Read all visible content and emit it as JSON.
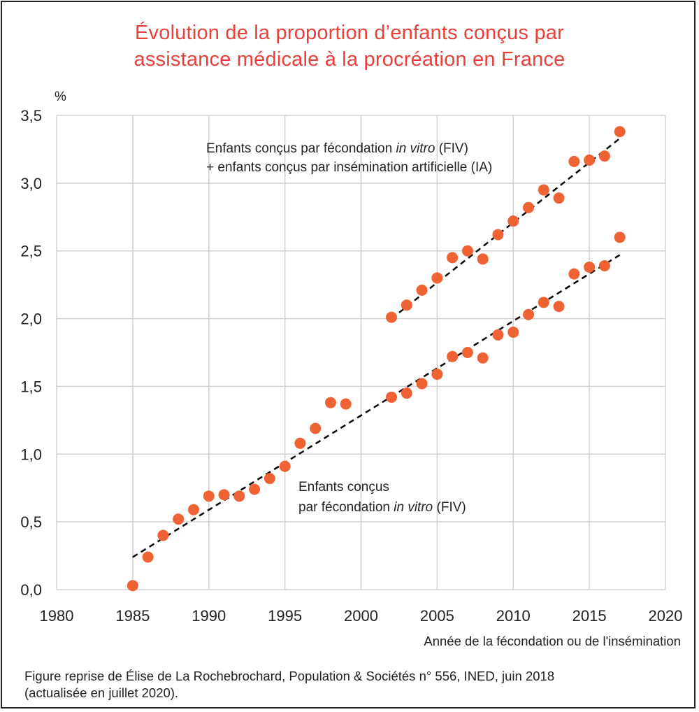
{
  "chart_data": {
    "type": "scatter",
    "title_lines": [
      "Évolution de la proportion d’enfants conçus par",
      "assistance médicale à la procréation en France"
    ],
    "ylabel": "%",
    "xlabel": "Année de la fécondation ou de l'insémination",
    "xlim": [
      1980,
      2020
    ],
    "ylim": [
      0,
      3.5
    ],
    "x_ticks": [
      1980,
      1985,
      1990,
      1995,
      2000,
      2005,
      2010,
      2015,
      2020
    ],
    "x_tick_labels": [
      "1980",
      "1985",
      "1990",
      "1995",
      "2000",
      "2005",
      "2010",
      "2015",
      "2020"
    ],
    "y_ticks": [
      0,
      0.5,
      1.0,
      1.5,
      2.0,
      2.5,
      3.0,
      3.5
    ],
    "y_tick_labels": [
      "0,0",
      "0,5",
      "1,0",
      "1,5",
      "2,0",
      "2,5",
      "3,0",
      "3,5"
    ],
    "grid": true,
    "marker_color": "#ef6234",
    "trend_color": "#000000",
    "series": [
      {
        "name": "Enfants conçus par fécondation in vitro (FIV)",
        "annotation": {
          "line1": "Enfants conçus",
          "line2_pre": "par fécondation ",
          "line2_italic": "in vitro",
          "line2_post": " (FIV)"
        },
        "x": [
          1985,
          1986,
          1987,
          1988,
          1989,
          1990,
          1991,
          1992,
          1993,
          1994,
          1995,
          1996,
          1997,
          1998,
          1999,
          2002,
          2003,
          2004,
          2005,
          2006,
          2007,
          2008,
          2009,
          2010,
          2011,
          2012,
          2013,
          2014,
          2015,
          2016,
          2017
        ],
        "values": [
          0.03,
          0.24,
          0.4,
          0.52,
          0.59,
          0.69,
          0.7,
          0.69,
          0.74,
          0.82,
          0.91,
          1.08,
          1.19,
          1.38,
          1.37,
          1.42,
          1.45,
          1.52,
          1.59,
          1.72,
          1.75,
          1.71,
          1.88,
          1.9,
          2.03,
          2.12,
          2.09,
          2.33,
          2.38,
          2.39,
          2.6
        ],
        "trend": {
          "x": [
            1985,
            2017
          ],
          "y": [
            0.24,
            2.47
          ],
          "style": "dashed"
        }
      },
      {
        "name": "Enfants conçus par fécondation in vitro (FIV) + enfants conçus par insémination artificielle (IA)",
        "annotation": {
          "line1_pre": "Enfants conçus par fécondation ",
          "line1_italic": "in vitro",
          "line1_post": " (FIV)",
          "line2": "+ enfants conçus par insémination artificielle (IA)"
        },
        "x": [
          2002,
          2003,
          2004,
          2005,
          2006,
          2007,
          2008,
          2009,
          2010,
          2011,
          2012,
          2013,
          2014,
          2015,
          2016,
          2017
        ],
        "values": [
          2.01,
          2.1,
          2.21,
          2.3,
          2.45,
          2.5,
          2.44,
          2.62,
          2.72,
          2.82,
          2.95,
          2.89,
          3.16,
          3.17,
          3.2,
          3.38
        ],
        "trend": {
          "x": [
            2002,
            2017
          ],
          "y": [
            2.0,
            3.33
          ],
          "style": "dashed"
        }
      }
    ]
  },
  "source": {
    "line1": "Figure reprise de Élise de La Rochebrochard, Population & Sociétés n° 556, INED, juin 2018",
    "line2": "(actualisée en juillet 2020)."
  }
}
